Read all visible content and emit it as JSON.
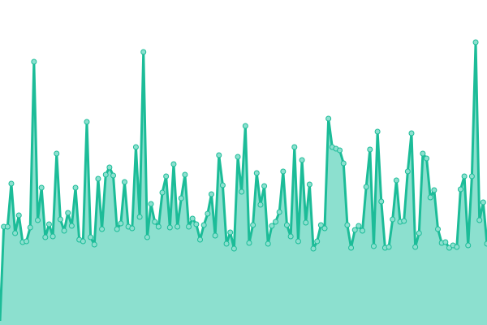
{
  "chart_data": {
    "type": "area",
    "title": "",
    "xlabel": "",
    "ylabel": "",
    "ylim": [
      0,
      400
    ],
    "grid": false,
    "legend": "none",
    "colors": {
      "line": "#1cbc98",
      "fill": "#8ce0cf",
      "marker_fill": "#8ce0cf",
      "marker_stroke": "#1cbc98"
    },
    "series": [
      {
        "values": [
          5,
          121,
          121,
          174,
          113,
          135,
          102,
          103,
          120,
          324,
          129,
          169,
          108,
          124,
          109,
          211,
          130,
          116,
          138,
          122,
          169,
          105,
          103,
          250,
          108,
          99,
          180,
          118,
          185,
          194,
          184,
          118,
          125,
          176,
          121,
          119,
          219,
          133,
          336,
          108,
          149,
          127,
          121,
          163,
          183,
          120,
          198,
          121,
          156,
          185,
          121,
          131,
          124,
          105,
          123,
          137,
          161,
          110,
          209,
          172,
          100,
          114,
          94,
          207,
          164,
          245,
          101,
          123,
          187,
          148,
          171,
          100,
          122,
          127,
          139,
          189,
          123,
          109,
          219,
          103,
          203,
          126,
          173,
          94,
          103,
          123,
          119,
          254,
          219,
          217,
          215,
          199,
          123,
          95,
          117,
          122,
          116,
          170,
          216,
          97,
          238,
          152,
          95,
          96,
          130,
          178,
          127,
          128,
          189,
          236,
          96,
          113,
          211,
          205,
          157,
          166,
          118,
          101,
          102,
          95,
          98,
          96,
          167,
          183,
          98,
          183,
          348,
          129,
          151,
          100
        ]
      }
    ]
  }
}
